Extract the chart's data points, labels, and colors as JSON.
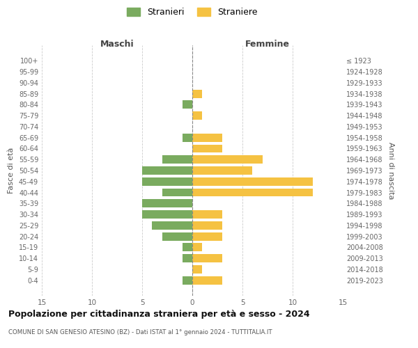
{
  "age_groups": [
    "0-4",
    "5-9",
    "10-14",
    "15-19",
    "20-24",
    "25-29",
    "30-34",
    "35-39",
    "40-44",
    "45-49",
    "50-54",
    "55-59",
    "60-64",
    "65-69",
    "70-74",
    "75-79",
    "80-84",
    "85-89",
    "90-94",
    "95-99",
    "100+"
  ],
  "birth_years": [
    "2019-2023",
    "2014-2018",
    "2009-2013",
    "2004-2008",
    "1999-2003",
    "1994-1998",
    "1989-1993",
    "1984-1988",
    "1979-1983",
    "1974-1978",
    "1969-1973",
    "1964-1968",
    "1959-1963",
    "1954-1958",
    "1949-1953",
    "1944-1948",
    "1939-1943",
    "1934-1938",
    "1929-1933",
    "1924-1928",
    "≤ 1923"
  ],
  "males": [
    1,
    0,
    1,
    1,
    3,
    4,
    5,
    5,
    3,
    5,
    5,
    3,
    0,
    1,
    0,
    0,
    1,
    0,
    0,
    0,
    0
  ],
  "females": [
    3,
    1,
    3,
    1,
    3,
    3,
    3,
    0,
    12,
    12,
    6,
    7,
    3,
    3,
    0,
    1,
    0,
    1,
    0,
    0,
    0
  ],
  "male_color": "#7aab5f",
  "female_color": "#f5c242",
  "title": "Popolazione per cittadinanza straniera per età e sesso - 2024",
  "subtitle": "COMUNE DI SAN GENESIO ATESINO (BZ) - Dati ISTAT al 1° gennaio 2024 - TUTTITALIA.IT",
  "xlabel_left": "Maschi",
  "xlabel_right": "Femmine",
  "ylabel_left": "Fasce di età",
  "ylabel_right": "Anni di nascita",
  "legend_male": "Stranieri",
  "legend_female": "Straniere",
  "xlim": 15,
  "background_color": "#ffffff",
  "grid_color": "#cccccc"
}
